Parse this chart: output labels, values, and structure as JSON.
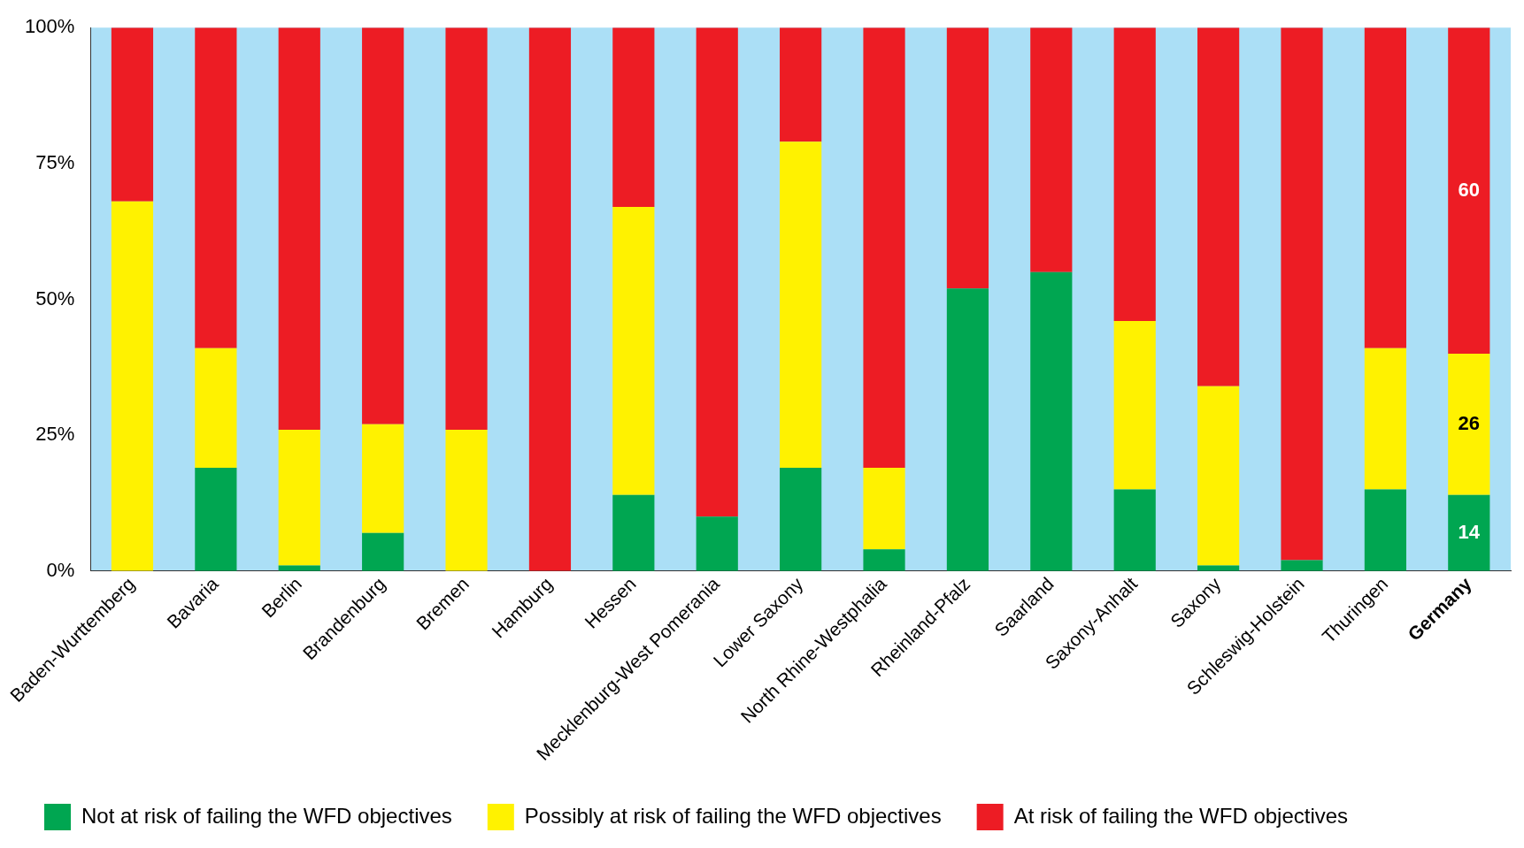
{
  "chart_data": {
    "type": "bar",
    "stacked": true,
    "legend": "bottom",
    "categories": [
      "Baden-Wurttemberg",
      "Bavaria",
      "Berlin",
      "Brandenburg",
      "Bremen",
      "Hamburg",
      "Hessen",
      "Mecklenburg-West Pomerania",
      "Lower Saxony",
      "North Rhine-Westphalia",
      "Rheinland-Pfalz",
      "Saarland",
      "Saxony-Anhalt",
      "Saxony",
      "Schleswig-Holstein",
      "Thuringen",
      "Germany"
    ],
    "ylim": [
      0,
      100
    ],
    "yticks": [
      {
        "value": 0,
        "label": "0%"
      },
      {
        "value": 25,
        "label": "25%"
      },
      {
        "value": 50,
        "label": "50%"
      },
      {
        "value": 75,
        "label": "75%"
      },
      {
        "value": 100,
        "label": "100%"
      }
    ],
    "series": [
      {
        "name": "Not at risk of failing the WFD objectives",
        "color": "#00a651",
        "values": [
          0,
          19,
          1,
          7,
          0,
          0,
          14,
          10,
          19,
          4,
          52,
          55,
          15,
          1,
          2,
          15,
          14
        ],
        "value_labels": [
          null,
          null,
          null,
          null,
          null,
          null,
          null,
          null,
          null,
          null,
          null,
          null,
          null,
          null,
          null,
          null,
          "14"
        ]
      },
      {
        "name": "Possibly at risk of failing the WFD objectives",
        "color": "#fff200",
        "values": [
          68,
          22,
          25,
          20,
          26,
          0,
          53,
          0,
          60,
          15,
          0,
          0,
          31,
          33,
          0,
          26,
          26
        ],
        "value_labels": [
          null,
          null,
          null,
          null,
          null,
          null,
          null,
          null,
          null,
          null,
          null,
          null,
          null,
          null,
          null,
          null,
          "26"
        ]
      },
      {
        "name": "At risk of failing the WFD objectives",
        "color": "#ed1c24",
        "values": [
          32,
          59,
          74,
          73,
          74,
          100,
          33,
          90,
          21,
          81,
          48,
          45,
          54,
          66,
          98,
          59,
          60
        ],
        "value_labels": [
          null,
          null,
          null,
          null,
          null,
          null,
          null,
          null,
          null,
          null,
          null,
          null,
          null,
          null,
          null,
          null,
          "60"
        ]
      }
    ]
  }
}
